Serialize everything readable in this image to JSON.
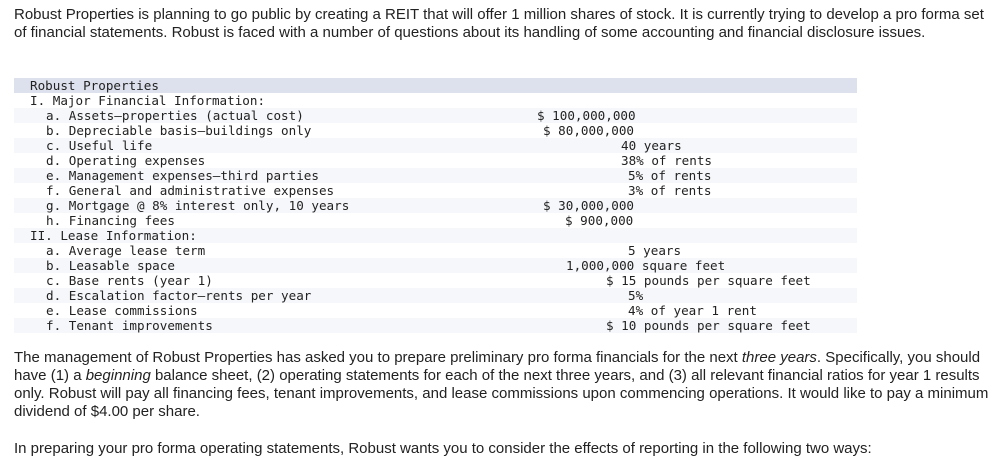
{
  "intro": "Robust Properties is planning to go public by creating a REIT that will offer 1 million shares of stock. It is currently trying to develop a pro forma set of financial statements. Robust is faced with a number of questions about its handling of some accounting and financial disclosure issues.",
  "table": {
    "title": "Robust Properties",
    "sections": [
      {
        "heading": "I. Major Financial Information:",
        "items": [
          {
            "label": "a. Assets—properties (actual cost)",
            "value": "$ 100,000,000"
          },
          {
            "label": "b. Depreciable basis—buildings only",
            "value": "$ 80,000,000"
          },
          {
            "label": "c. Useful life",
            "value": "40 years"
          },
          {
            "label": "d. Operating expenses",
            "value": "38% of rents"
          },
          {
            "label": "e. Management expenses—third parties",
            "value": "5% of rents"
          },
          {
            "label": "f. General and administrative expenses",
            "value": "3% of rents"
          },
          {
            "label": "g. Mortgage @ 8% interest only, 10 years",
            "value": "$ 30,000,000"
          },
          {
            "label": "h. Financing fees",
            "value": "$ 900,000"
          }
        ]
      },
      {
        "heading": "II. Lease Information:",
        "items": [
          {
            "label": "a. Average lease term",
            "value": "5 years"
          },
          {
            "label": "b. Leasable space",
            "value": "1,000,000 square feet"
          },
          {
            "label": "c. Base rents (year 1)",
            "value": "$ 15 pounds per square feet"
          },
          {
            "label": "d. Escalation factor—rents per year",
            "value": "5%"
          },
          {
            "label": "e. Lease commissions",
            "value": "4% of year 1 rent"
          },
          {
            "label": "f. Tenant improvements",
            "value": "$ 10 pounds per square feet"
          }
        ]
      }
    ]
  },
  "paragraphs": [
    [
      "The management of Robust Properties has asked you to prepare preliminary pro forma financials for the next ",
      "three years",
      ". Specifically, you should have (1) a ",
      "beginning",
      " balance sheet, (2) operating statements for each of the next three years, and (3) all relevant financial ratios for year 1 results only. Robust will pay all financing fees, tenant improvements, and lease commissions upon commencing operations. It would like to pay a minimum dividend of $4.00 per share."
    ],
    [
      "In preparing your pro forma operating statements, Robust wants you to consider the effects of reporting in the following two ways:"
    ]
  ]
}
